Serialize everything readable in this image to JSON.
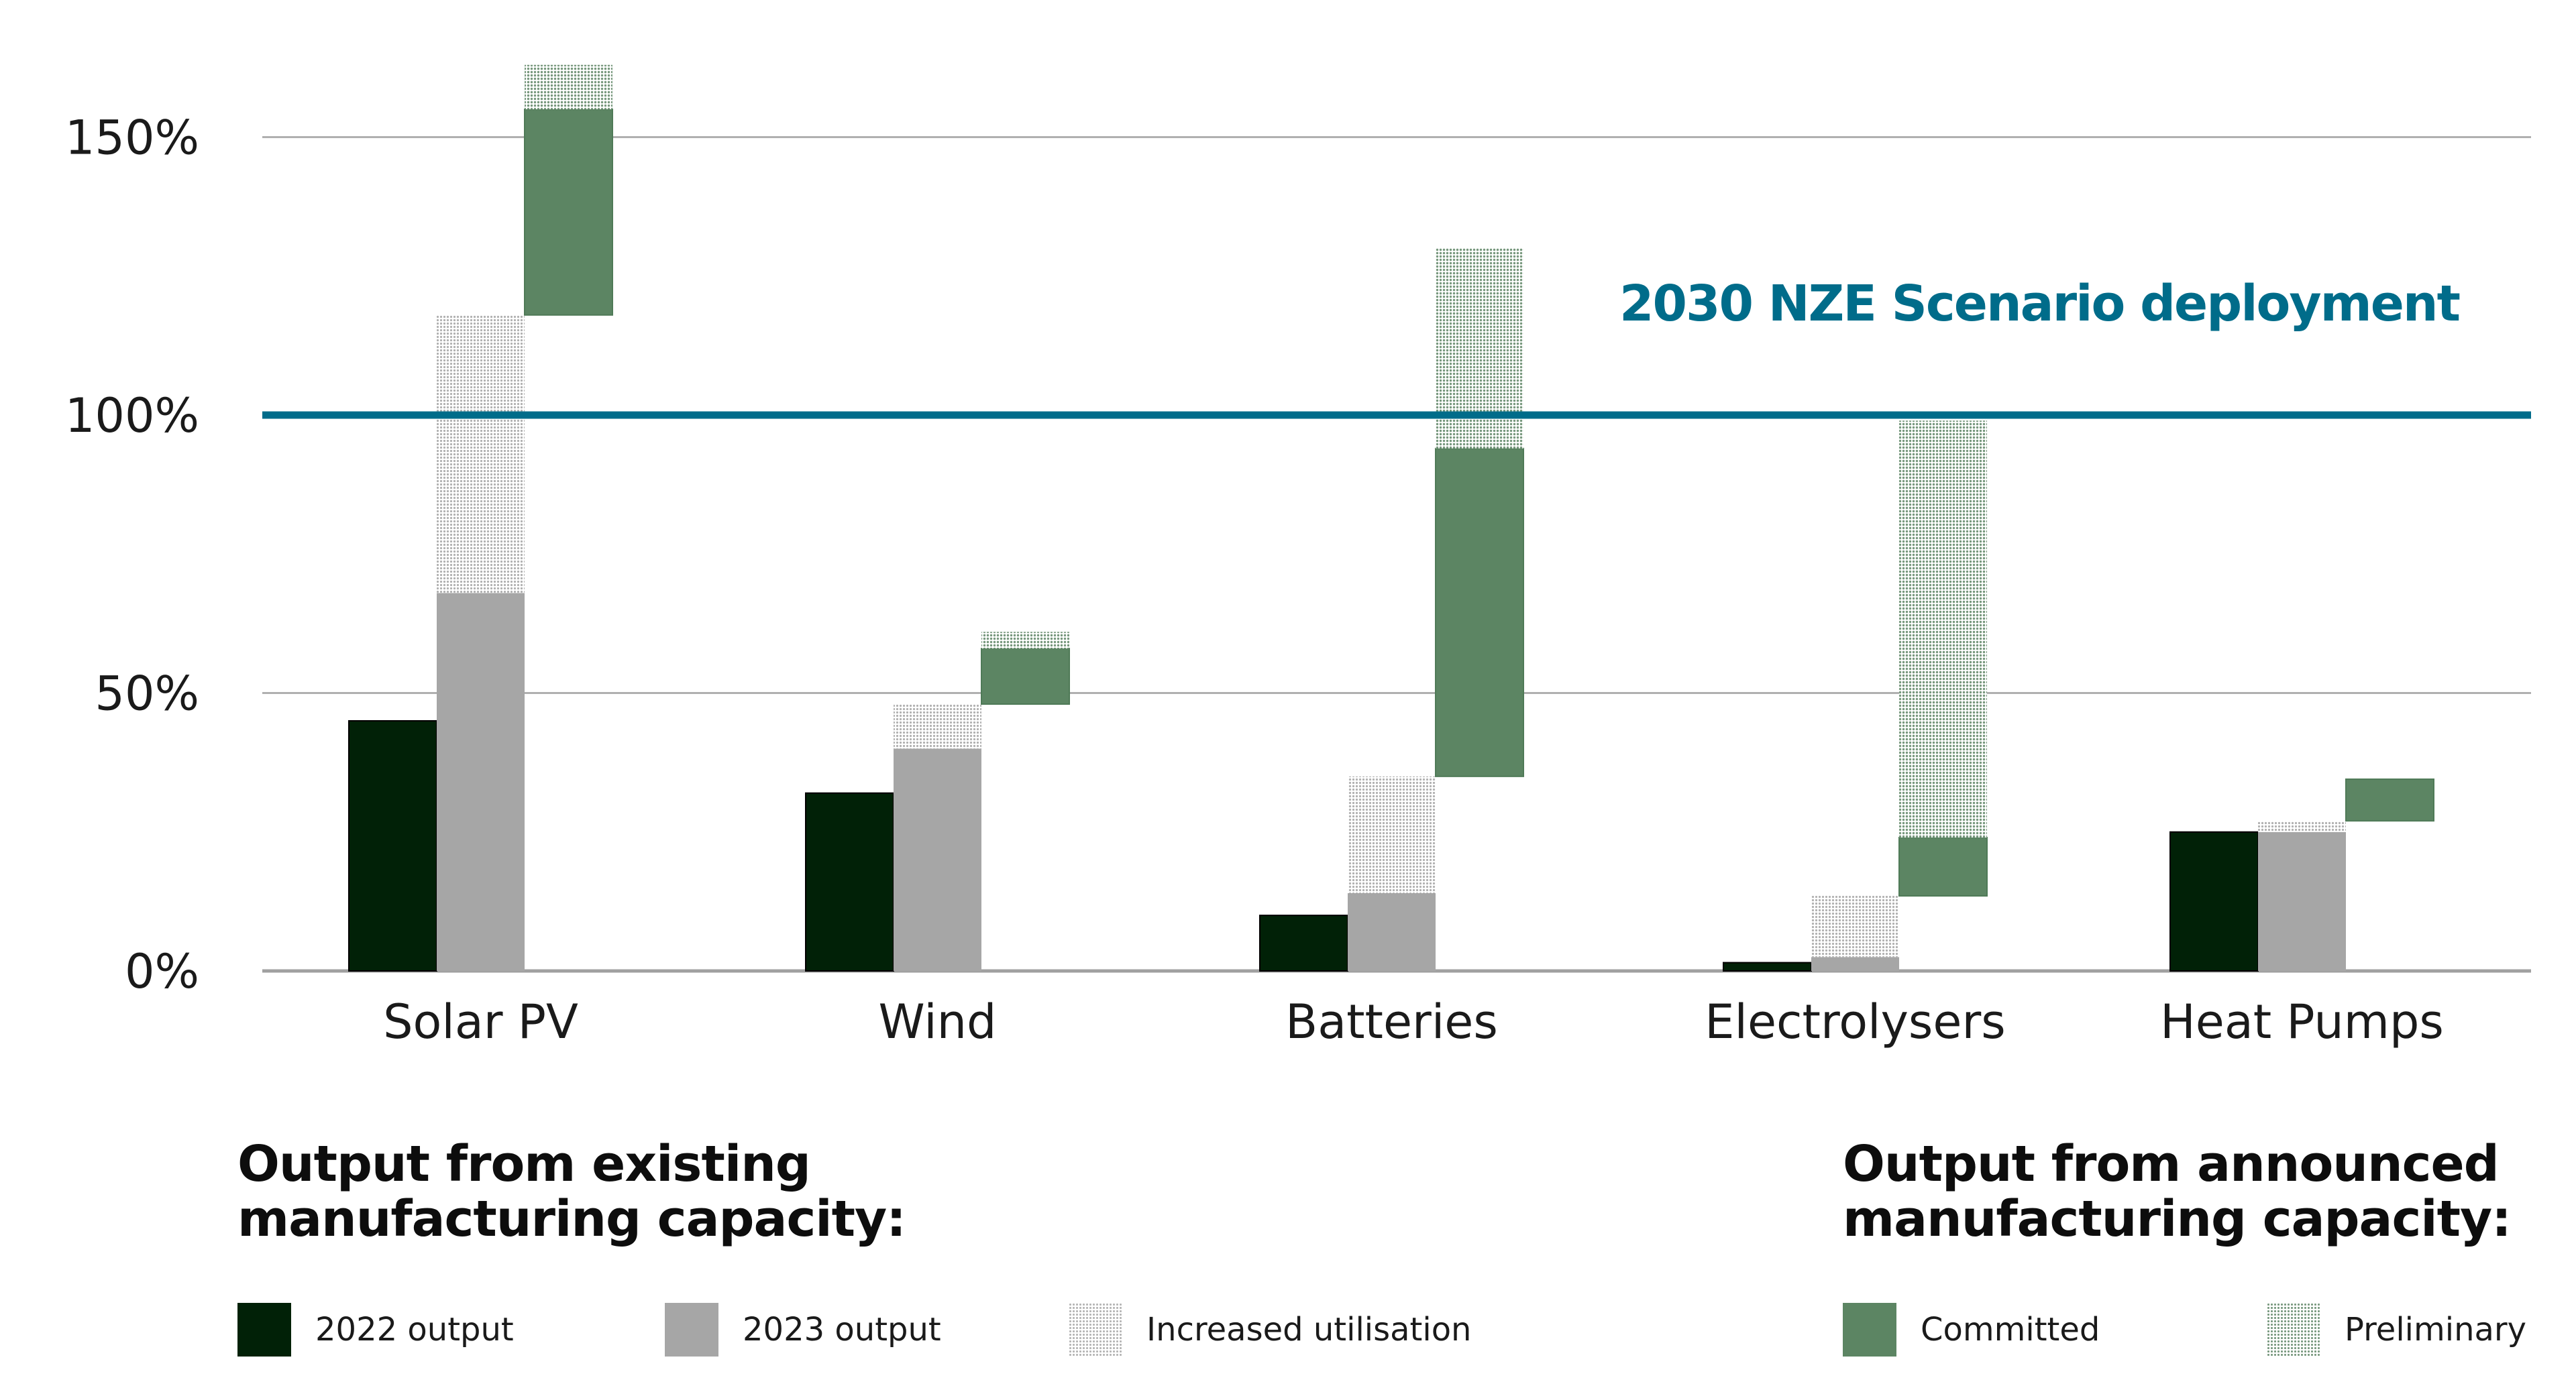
{
  "chart_data": {
    "type": "bar",
    "subtype": "stacked-floating-grouped",
    "title": "",
    "xlabel": "",
    "ylabel": "",
    "ylim": [
      0,
      165
    ],
    "yticks": [
      0,
      50,
      100,
      150
    ],
    "ytick_labels": [
      "0%",
      "50%",
      "100%",
      "150%"
    ],
    "grid": true,
    "categories": [
      "Solar PV",
      "Wind",
      "Batteries",
      "Electrolysers",
      "Heat Pumps"
    ],
    "series": [
      {
        "name": "2022 output",
        "group": "existing",
        "column": 0,
        "color": "#012107",
        "pattern": "solid",
        "values": [
          45,
          32,
          10,
          1.5,
          25
        ]
      },
      {
        "name": "2023 output",
        "group": "existing",
        "column": 1,
        "color": "#a6a6a6",
        "pattern": "solid",
        "values": [
          68,
          40,
          14,
          2.5,
          25
        ]
      },
      {
        "name": "Increased utilisation",
        "group": "existing",
        "column": 1,
        "color": "#b5b5b5",
        "pattern": "dotted",
        "values": [
          50,
          8,
          21,
          11,
          2
        ]
      },
      {
        "name": "Committed",
        "group": "announced",
        "column": 2,
        "color": "#5c8563",
        "pattern": "solid",
        "base": [
          118,
          48,
          35,
          13.5,
          27
        ],
        "values": [
          37,
          10,
          59,
          10.5,
          7.5
        ]
      },
      {
        "name": "Preliminary",
        "group": "announced",
        "column": 2,
        "color": "#7a9a80",
        "pattern": "dotted",
        "values": [
          8,
          3,
          36,
          75,
          0
        ]
      }
    ],
    "reference_line": {
      "value": 100,
      "label": "2030 NZE Scenario deployment",
      "color": "#006c8a"
    },
    "legend": {
      "placement": "bottom",
      "groups": [
        {
          "header": [
            "Output from existing",
            "manufacturing capacity:"
          ],
          "items": [
            "2022 output",
            "2023 output",
            "Increased utilisation"
          ]
        },
        {
          "header": [
            "Output from announced",
            "manufacturing capacity:"
          ],
          "items": [
            "Committed",
            "Preliminary"
          ]
        }
      ]
    }
  },
  "legend": {
    "existing_header_line1": "Output from existing",
    "existing_header_line2": "manufacturing capacity:",
    "announced_header_line1": "Output from announced",
    "announced_header_line2": "manufacturing capacity:",
    "items": {
      "output_2022": "2022 output",
      "output_2023": "2023 output",
      "increased_utilisation": "Increased utilisation",
      "committed": "Committed",
      "preliminary": "Preliminary"
    }
  },
  "colors": {
    "output_2022": "#012107",
    "output_2023": "#a6a6a6",
    "increased_utilisation": "#b5b5b5",
    "committed": "#5c8563",
    "preliminary": "#7a9a80",
    "reference_line": "#006c8a",
    "gridline": "#b0b0b0",
    "axis": "#a0a0a0"
  }
}
